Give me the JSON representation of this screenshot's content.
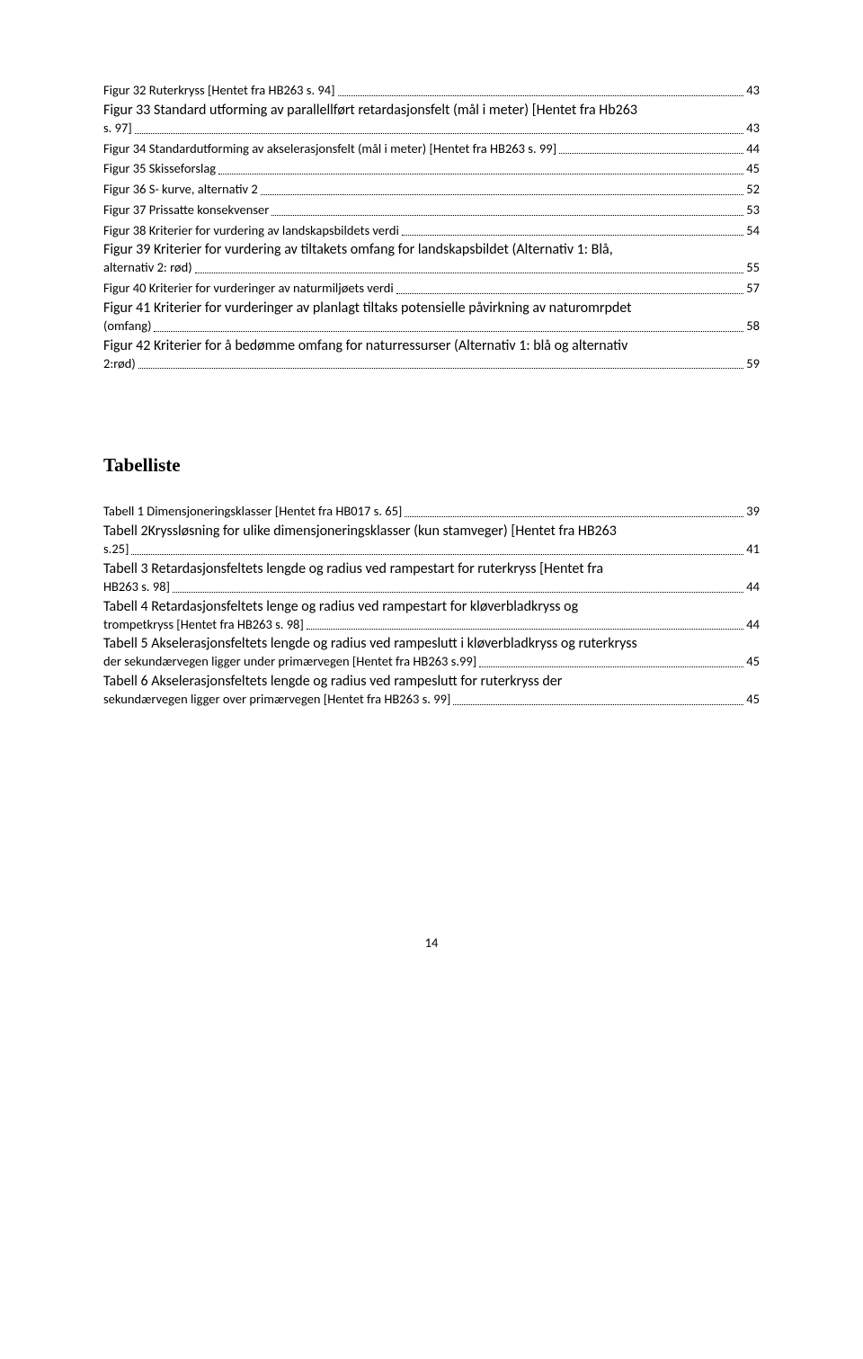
{
  "figures": [
    {
      "text": "Figur 32 Ruterkryss [Hentet fra HB263 s. 94]",
      "page": "43"
    },
    {
      "text_line1": "Figur 33 Standard utforming av parallellført retardasjonsfelt (mål i meter) [Hentet fra Hb263",
      "text_line2": "s. 97]",
      "page": "43"
    },
    {
      "text": "Figur 34 Standardutforming av akselerasjonsfelt (mål i meter) [Hentet fra HB263 s. 99]",
      "page": "44"
    },
    {
      "text": "Figur 35 Skisseforslag",
      "page": "45"
    },
    {
      "text": "Figur 36 S- kurve, alternativ 2",
      "page": "52"
    },
    {
      "text": "Figur 37 Prissatte konsekvenser",
      "page": "53"
    },
    {
      "text": "Figur 38 Kriterier for vurdering av landskapsbildets verdi",
      "page": "54"
    },
    {
      "text_line1": "Figur 39 Kriterier for vurdering av tiltakets omfang for landskapsbildet (Alternativ 1: Blå,",
      "text_line2": "alternativ 2: rød)",
      "page": "55"
    },
    {
      "text": "Figur 40 Kriterier for vurderinger av naturmiljøets verdi",
      "page": "57"
    },
    {
      "text_line1": "Figur 41 Kriterier for vurderinger av planlagt tiltaks potensielle påvirkning av naturomrpdet",
      "text_line2": "(omfang)",
      "page": "58"
    },
    {
      "text_line1": "Figur 42 Kriterier for å bedømme omfang for naturressurser (Alternativ 1: blå og alternativ",
      "text_line2": "2:rød)",
      "page": "59"
    }
  ],
  "table_heading": "Tabelliste",
  "tables": [
    {
      "text": "Tabell 1 Dimensjoneringsklasser [Hentet fra HB017 s. 65]",
      "page": "39"
    },
    {
      "text_line1": "Tabell 2Kryssløsning for ulike dimensjoneringsklasser (kun stamveger) [Hentet fra HB263",
      "text_line2": "s.25]",
      "page": "41"
    },
    {
      "text_line1": "Tabell 3 Retardasjonsfeltets lengde og radius ved rampestart for ruterkryss [Hentet fra",
      "text_line2": "HB263 s. 98]",
      "page": "44"
    },
    {
      "text_line1": "Tabell 4 Retardasjonsfeltets lenge og radius ved rampestart for kløverbladkryss og",
      "text_line2": "trompetkryss [Hentet fra HB263 s. 98]",
      "page": "44"
    },
    {
      "text_line1": "Tabell 5 Akselerasjonsfeltets lengde og radius ved rampeslutt i kløverbladkryss og ruterkryss",
      "text_line2": "der sekundærvegen ligger under primærvegen [Hentet fra HB263 s.99]",
      "page": "45"
    },
    {
      "text_line1": "Tabell 6 Akselerasjonsfeltets lengde og radius ved rampeslutt for ruterkryss der",
      "text_line2": "sekundærvegen ligger over primærvegen [Hentet fra HB263 s. 99]",
      "page": "45"
    }
  ],
  "page_number": "14"
}
